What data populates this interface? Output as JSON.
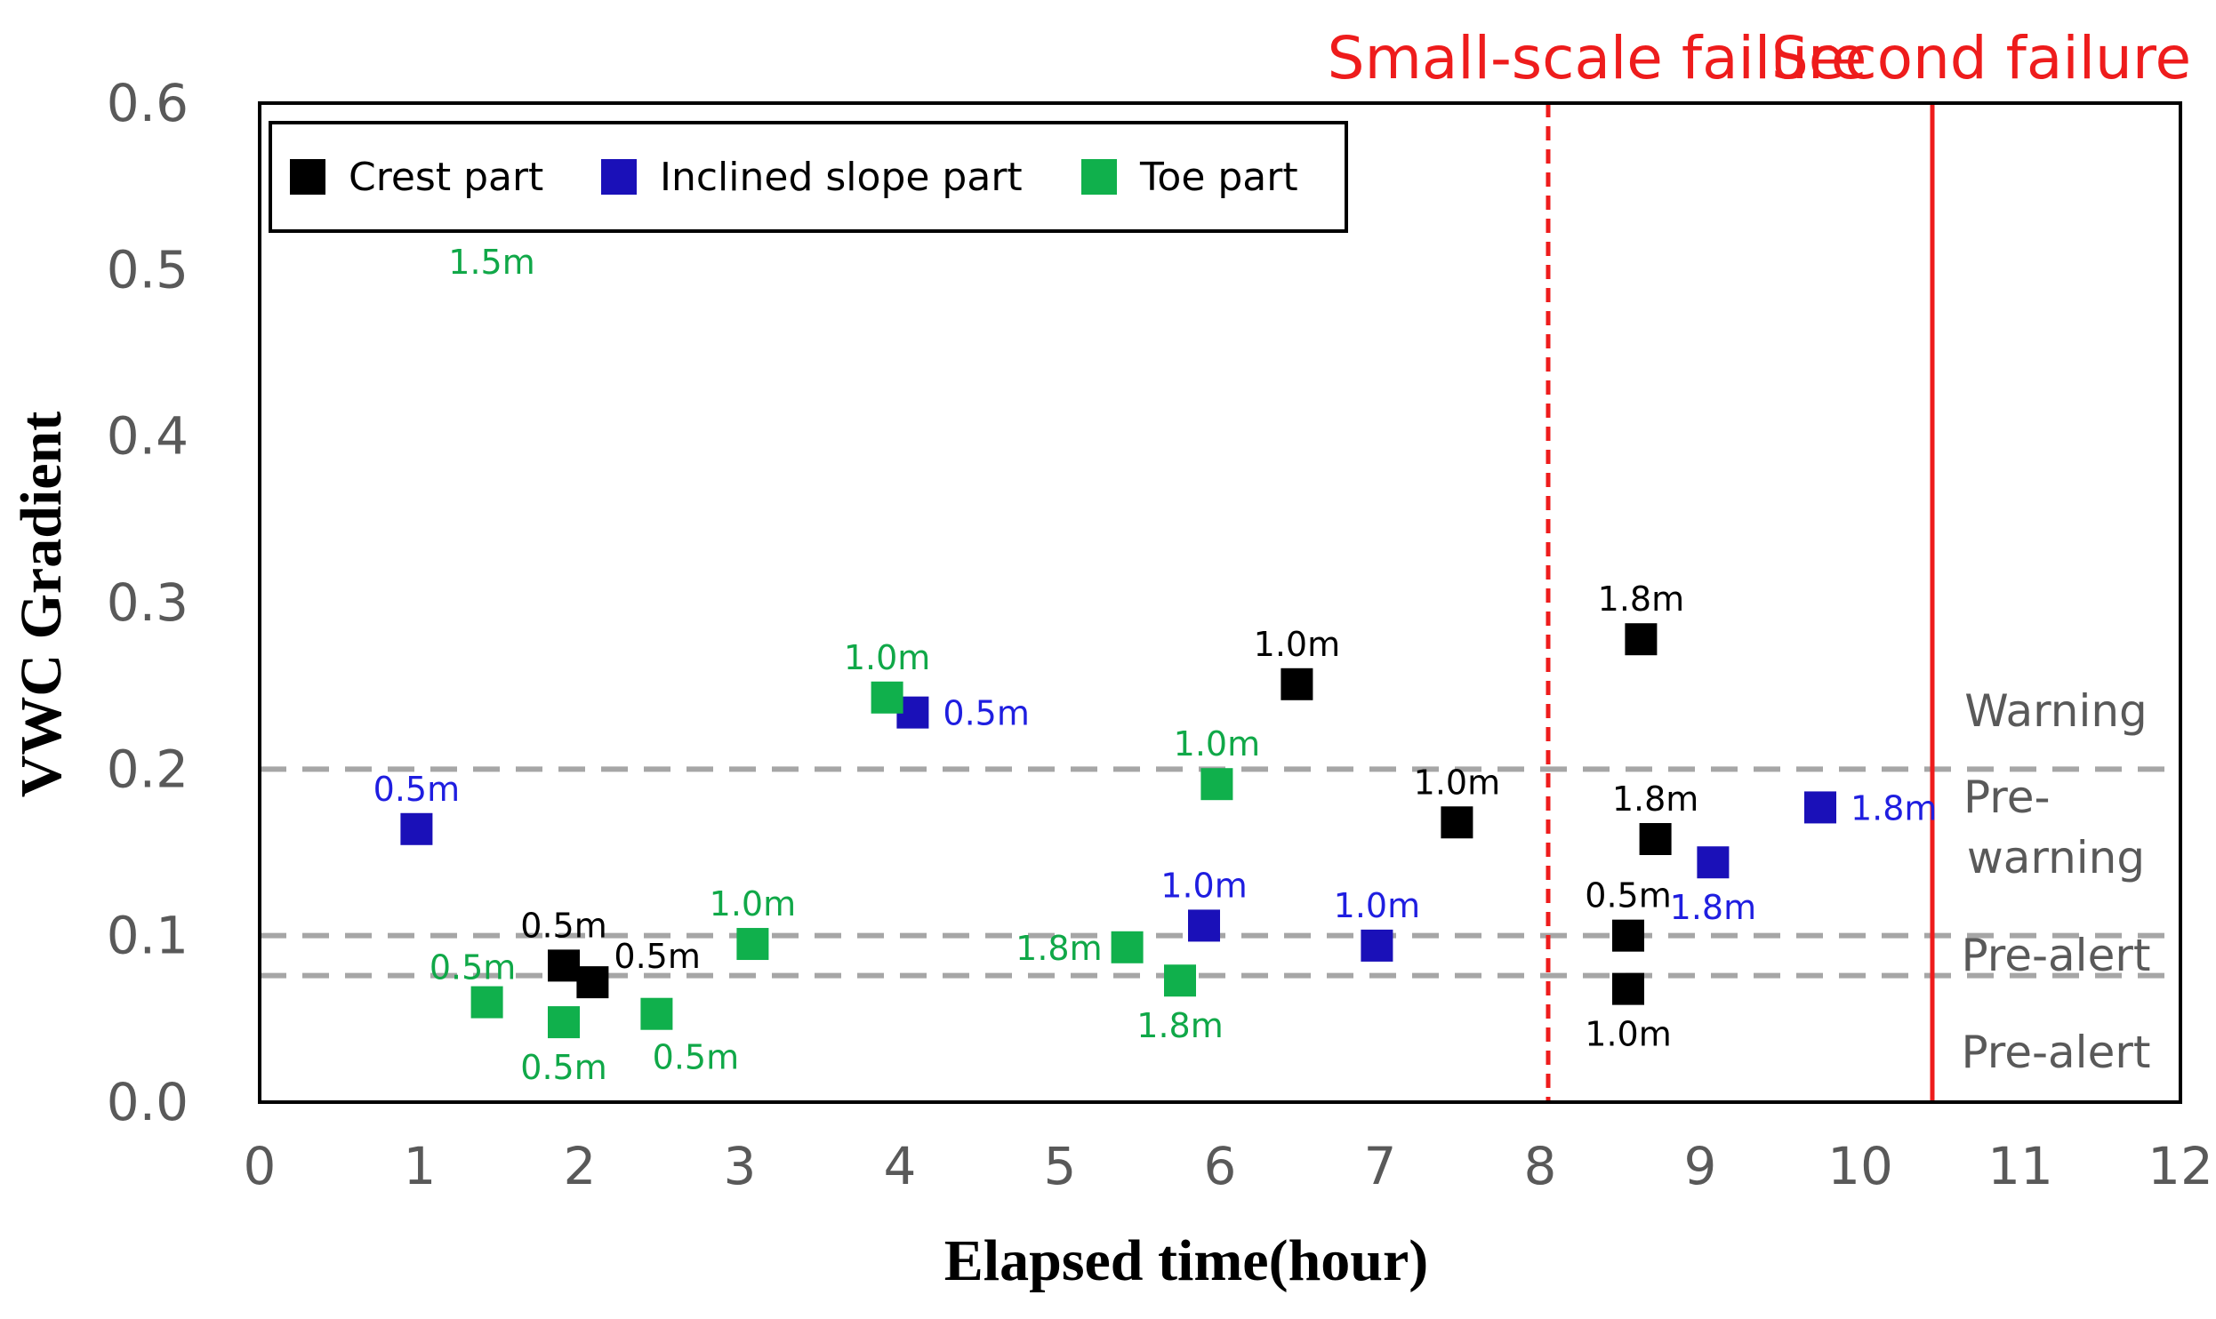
{
  "chart_data": {
    "type": "scatter",
    "xlabel": "Elapsed time(hour)",
    "ylabel": "VWC Gradient",
    "xlim": [
      0,
      12
    ],
    "ylim": [
      0,
      0.6
    ],
    "x_ticks": [
      {
        "value": 0,
        "label": "0"
      },
      {
        "value": 1,
        "label": "1"
      },
      {
        "value": 2,
        "label": "2"
      },
      {
        "value": 3,
        "label": "3"
      },
      {
        "value": 4,
        "label": "4"
      },
      {
        "value": 5,
        "label": "5"
      },
      {
        "value": 6,
        "label": "6"
      },
      {
        "value": 7,
        "label": "7"
      },
      {
        "value": 8,
        "label": "8"
      },
      {
        "value": 9,
        "label": "9"
      },
      {
        "value": 10,
        "label": "10"
      },
      {
        "value": 11,
        "label": "11"
      },
      {
        "value": 12,
        "label": "12"
      }
    ],
    "y_ticks": [
      {
        "value": 0,
        "label": "0.0"
      },
      {
        "value": 0.1,
        "label": "0.1"
      },
      {
        "value": 0.2,
        "label": "0.2"
      },
      {
        "value": 0.3,
        "label": "0.3"
      },
      {
        "value": 0.4,
        "label": "0.4"
      },
      {
        "value": 0.5,
        "label": "0.5"
      },
      {
        "value": 0.6,
        "label": "0.6"
      }
    ],
    "legend_position": "top-left",
    "series": [
      {
        "name": "Crest part",
        "color": "#000000",
        "points": [
          {
            "x": 1.9,
            "y": 0.082,
            "label": "0.5m",
            "label_pos": "above"
          },
          {
            "x": 2.08,
            "y": 0.072,
            "label": "0.5m",
            "label_pos": "above-right"
          },
          {
            "x": 6.48,
            "y": 0.251,
            "label": "1.0m",
            "label_pos": "above"
          },
          {
            "x": 7.48,
            "y": 0.168,
            "label": "1.0m",
            "label_pos": "above"
          },
          {
            "x": 8.55,
            "y": 0.1,
            "label": "0.5m",
            "label_pos": "above"
          },
          {
            "x": 8.55,
            "y": 0.068,
            "label": "1.0m",
            "label_pos": "below"
          },
          {
            "x": 8.63,
            "y": 0.278,
            "label": "1.8m",
            "label_pos": "above"
          },
          {
            "x": 8.72,
            "y": 0.158,
            "label": "1.8m",
            "label_pos": "above"
          }
        ]
      },
      {
        "name": "Inclined slope part",
        "color": "#1a10b8",
        "label_color": "#1f1ee0",
        "points": [
          {
            "x": 0.98,
            "y": 0.164,
            "label": "0.5m",
            "label_pos": "above"
          },
          {
            "x": 4.08,
            "y": 0.234,
            "label": "0.5m",
            "label_pos": "right"
          },
          {
            "x": 5.9,
            "y": 0.106,
            "label": "1.0m",
            "label_pos": "above"
          },
          {
            "x": 6.98,
            "y": 0.094,
            "label": "1.0m",
            "label_pos": "above"
          },
          {
            "x": 9.08,
            "y": 0.144,
            "label": "1.8m",
            "label_pos": "below"
          },
          {
            "x": 9.75,
            "y": 0.177,
            "label": "1.8m",
            "label_pos": "right"
          }
        ]
      },
      {
        "name": "Toe part",
        "color": "#10b04c",
        "label_color": "#10a848",
        "points": [
          {
            "x": 1.42,
            "y": 0.06,
            "label": "0.5m",
            "label_pos": "above-left"
          },
          {
            "x": 1.9,
            "y": 0.048,
            "label": "0.5m",
            "label_pos": "below"
          },
          {
            "x": 2.48,
            "y": 0.053,
            "label": "0.5m",
            "label_pos": "below-right"
          },
          {
            "x": 3.08,
            "y": 0.095,
            "label": "1.0m",
            "label_pos": "above"
          },
          {
            "x": 3.92,
            "y": 0.243,
            "label": "1.0m",
            "label_pos": "above"
          },
          {
            "x": 5.42,
            "y": 0.093,
            "label": "1.8m",
            "label_pos": "left"
          },
          {
            "x": 5.75,
            "y": 0.073,
            "label": "1.8m",
            "label_pos": "below"
          },
          {
            "x": 5.98,
            "y": 0.191,
            "label": "1.0m",
            "label_pos": "above"
          }
        ]
      }
    ],
    "annotations": [
      {
        "text": "1.5m",
        "x": 1.45,
        "y": 0.505,
        "color": "#10a848"
      }
    ],
    "threshold_lines": [
      {
        "y": 0.2,
        "style": "dashed",
        "color": "#a6a6a6"
      },
      {
        "y": 0.1,
        "style": "dashed",
        "color": "#a6a6a6"
      },
      {
        "y": 0.076,
        "style": "dashed",
        "color": "#a6a6a6"
      }
    ],
    "zone_labels": [
      {
        "lines": [
          "Warning"
        ],
        "y": 0.235
      },
      {
        "lines": [
          "Pre-",
          "warning"
        ],
        "y": 0.165
      },
      {
        "lines": [
          "Pre-alert"
        ],
        "y": 0.088
      },
      {
        "lines": [
          "Pre-alert"
        ],
        "y": 0.03
      }
    ],
    "failure_lines": [
      {
        "x": 8.05,
        "label": "Small-scale failure",
        "style": "dashed",
        "color": "#ee1c1c"
      },
      {
        "x": 10.45,
        "label": "Second failure",
        "style": "solid",
        "color": "#ee1c1c"
      }
    ]
  }
}
